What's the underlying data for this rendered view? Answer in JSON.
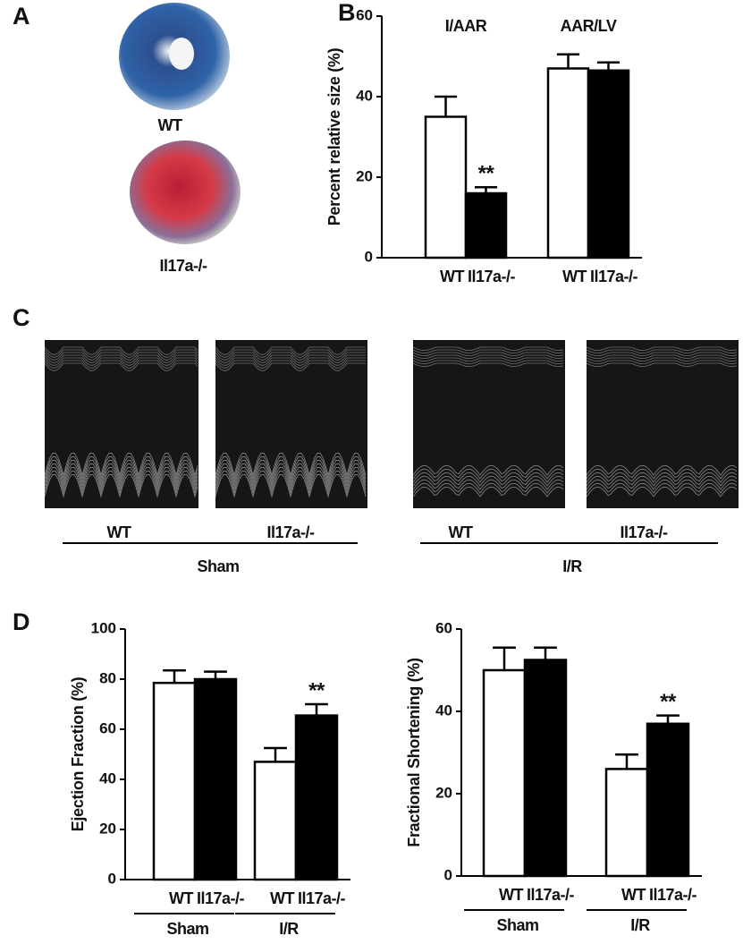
{
  "panel_labels": [
    "A",
    "B",
    "C",
    "D"
  ],
  "panel_a": {
    "labels": [
      "WT",
      "Il17a-/-"
    ]
  },
  "panel_c": {
    "image_labels": [
      "WT",
      "Il17a-/-",
      "WT",
      "Il17a-/-"
    ],
    "groups": [
      "Sham",
      "I/R"
    ]
  },
  "chart_data": [
    {
      "type": "bar",
      "y_label": "Percent relative size (%)",
      "categories": [
        "I/AAR",
        "AAR/LV"
      ],
      "category_position": "top",
      "ylim": [
        0,
        60
      ],
      "yticks": [
        0,
        20,
        40,
        60
      ],
      "series": [
        {
          "name": "WT",
          "color": "#ffffff",
          "values": [
            35,
            47
          ],
          "errors": [
            5,
            3.5
          ],
          "annotations": [
            null,
            null
          ]
        },
        {
          "name": "Il17a-/-",
          "color": "#000000",
          "values": [
            16,
            46.5
          ],
          "errors": [
            1.5,
            2
          ],
          "annotations": [
            "**",
            null
          ]
        }
      ]
    },
    {
      "type": "bar",
      "y_label": "Ejection Fraction (%)",
      "categories": [
        "Sham",
        "I/R"
      ],
      "category_position": "bottom",
      "ylim": [
        0,
        100
      ],
      "yticks": [
        0,
        20,
        40,
        60,
        80,
        100
      ],
      "series": [
        {
          "name": "WT",
          "color": "#ffffff",
          "values": [
            78.5,
            47
          ],
          "errors": [
            5,
            5.5
          ],
          "annotations": [
            null,
            null
          ]
        },
        {
          "name": "Il17a-/-",
          "color": "#000000",
          "values": [
            80,
            65.5
          ],
          "errors": [
            3,
            4.5
          ],
          "annotations": [
            null,
            "**"
          ]
        }
      ]
    },
    {
      "type": "bar",
      "y_label": "Fractional Shortening (%)",
      "categories": [
        "Sham",
        "I/R"
      ],
      "category_position": "bottom",
      "ylim": [
        0,
        60
      ],
      "yticks": [
        0,
        20,
        40,
        60
      ],
      "series": [
        {
          "name": "WT",
          "color": "#ffffff",
          "values": [
            50,
            26
          ],
          "errors": [
            5.5,
            3.5
          ],
          "annotations": [
            null,
            null
          ]
        },
        {
          "name": "Il17a-/-",
          "color": "#000000",
          "values": [
            52.5,
            37
          ],
          "errors": [
            3,
            2
          ],
          "annotations": [
            null,
            "**"
          ]
        }
      ]
    }
  ]
}
